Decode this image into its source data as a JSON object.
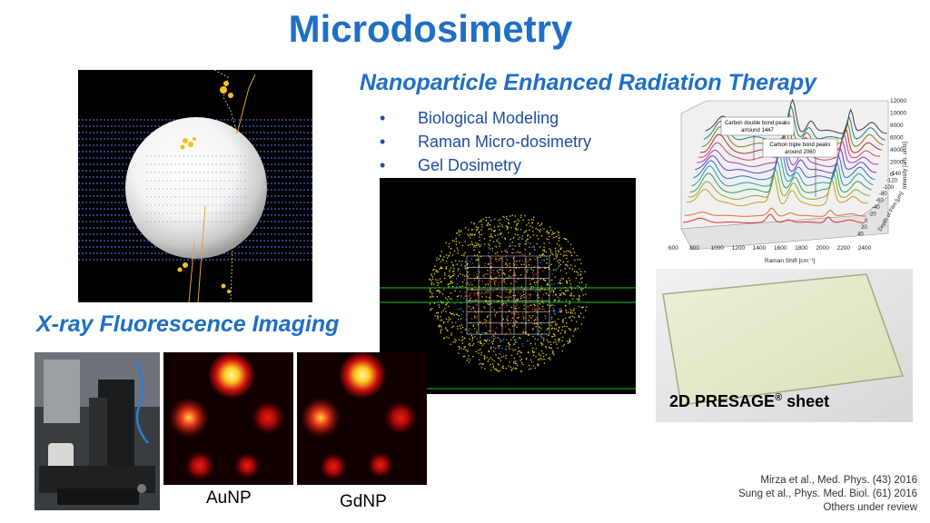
{
  "slide": {
    "title": "Microdosimetry",
    "subtitle_1": "Nanoparticle Enhanced Radiation Therapy",
    "bullets": [
      "Biological Modeling",
      "Raman Micro-dosimetry",
      "Gel Dosimetry"
    ],
    "bullet_glyph": "•",
    "subtitle_2": "X-ray Fluorescence Imaging",
    "captions": {
      "au": "AuNP",
      "gd": "GdNP"
    },
    "presage_label": "2D PRESAGE",
    "presage_sup": "®",
    "presage_suffix": " sheet",
    "references": [
      "Mirza et al., Med. Phys. (43) 2016",
      "Sung et al., Phys. Med. Biol. (61) 2016",
      "Others under review"
    ]
  },
  "raman_plot": {
    "annotations": [
      "Carbon double bond peaks",
      "arround 1447",
      "Carbon triple bond peaks",
      "around 2060"
    ],
    "xlabel": "Raman Shift [cm⁻¹]",
    "xticks": [
      "600",
      "800",
      "1000",
      "1200",
      "1400",
      "1600",
      "1800",
      "2000",
      "2200",
      "2400"
    ],
    "zlabel": "Intensity [arb. units]",
    "zticks": [
      "12000",
      "10000",
      "8000",
      "6000",
      "4000",
      "2000",
      "0"
    ],
    "ylabel": "Depth of Film [μm]",
    "yticks": [
      "-140",
      "-120",
      "-100",
      "-80",
      "-60",
      "-40",
      "-20",
      "0",
      "20",
      "40"
    ]
  }
}
